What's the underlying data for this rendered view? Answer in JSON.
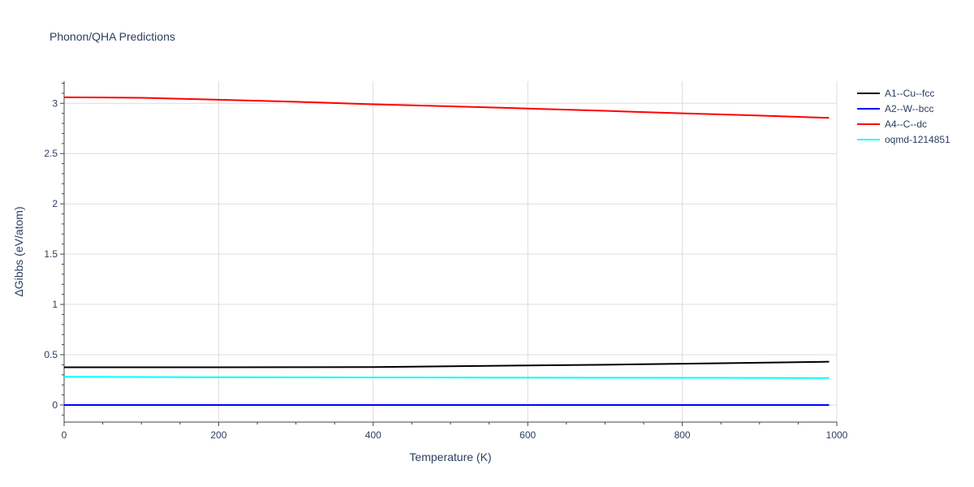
{
  "chart_data": {
    "type": "line",
    "title": "Phonon/QHA Predictions",
    "xlabel": "Temperature (K)",
    "ylabel": "ΔGibbs (eV/atom)",
    "xlim": [
      0,
      1000
    ],
    "ylim": [
      -0.17,
      3.22
    ],
    "xticks": [
      0,
      200,
      400,
      600,
      800,
      1000
    ],
    "xtick_labels": [
      "0",
      "200",
      "400",
      "600",
      "800",
      "1000"
    ],
    "yticks": [
      0,
      0.5,
      1,
      1.5,
      2,
      2.5,
      3
    ],
    "ytick_labels": [
      "0",
      "0.5",
      "1",
      "1.5",
      "2",
      "2.5",
      "3"
    ],
    "grid": true,
    "legend_position": "top-right",
    "series": [
      {
        "name": "A1--Cu--fcc",
        "color": "#000000",
        "x": [
          0,
          100,
          200,
          300,
          400,
          500,
          600,
          700,
          800,
          900,
          990
        ],
        "y": [
          0.375,
          0.375,
          0.375,
          0.376,
          0.377,
          0.385,
          0.393,
          0.4,
          0.41,
          0.42,
          0.43
        ]
      },
      {
        "name": "A2--W--bcc",
        "color": "#0000ff",
        "x": [
          0,
          100,
          200,
          300,
          400,
          500,
          600,
          700,
          800,
          900,
          990
        ],
        "y": [
          0,
          0,
          0,
          0,
          0,
          0,
          0,
          0,
          0,
          0,
          0
        ]
      },
      {
        "name": "A4--C--dc",
        "color": "#ff0000",
        "x": [
          0,
          100,
          200,
          300,
          400,
          500,
          600,
          700,
          800,
          900,
          990
        ],
        "y": [
          3.06,
          3.055,
          3.035,
          3.015,
          2.99,
          2.97,
          2.948,
          2.925,
          2.9,
          2.878,
          2.855
        ]
      },
      {
        "name": "oqmd-1214851",
        "color": "#00ffff",
        "x": [
          0,
          100,
          200,
          300,
          400,
          500,
          600,
          700,
          800,
          900,
          990
        ],
        "y": [
          0.28,
          0.278,
          0.276,
          0.275,
          0.274,
          0.273,
          0.272,
          0.271,
          0.27,
          0.269,
          0.268
        ]
      }
    ]
  }
}
